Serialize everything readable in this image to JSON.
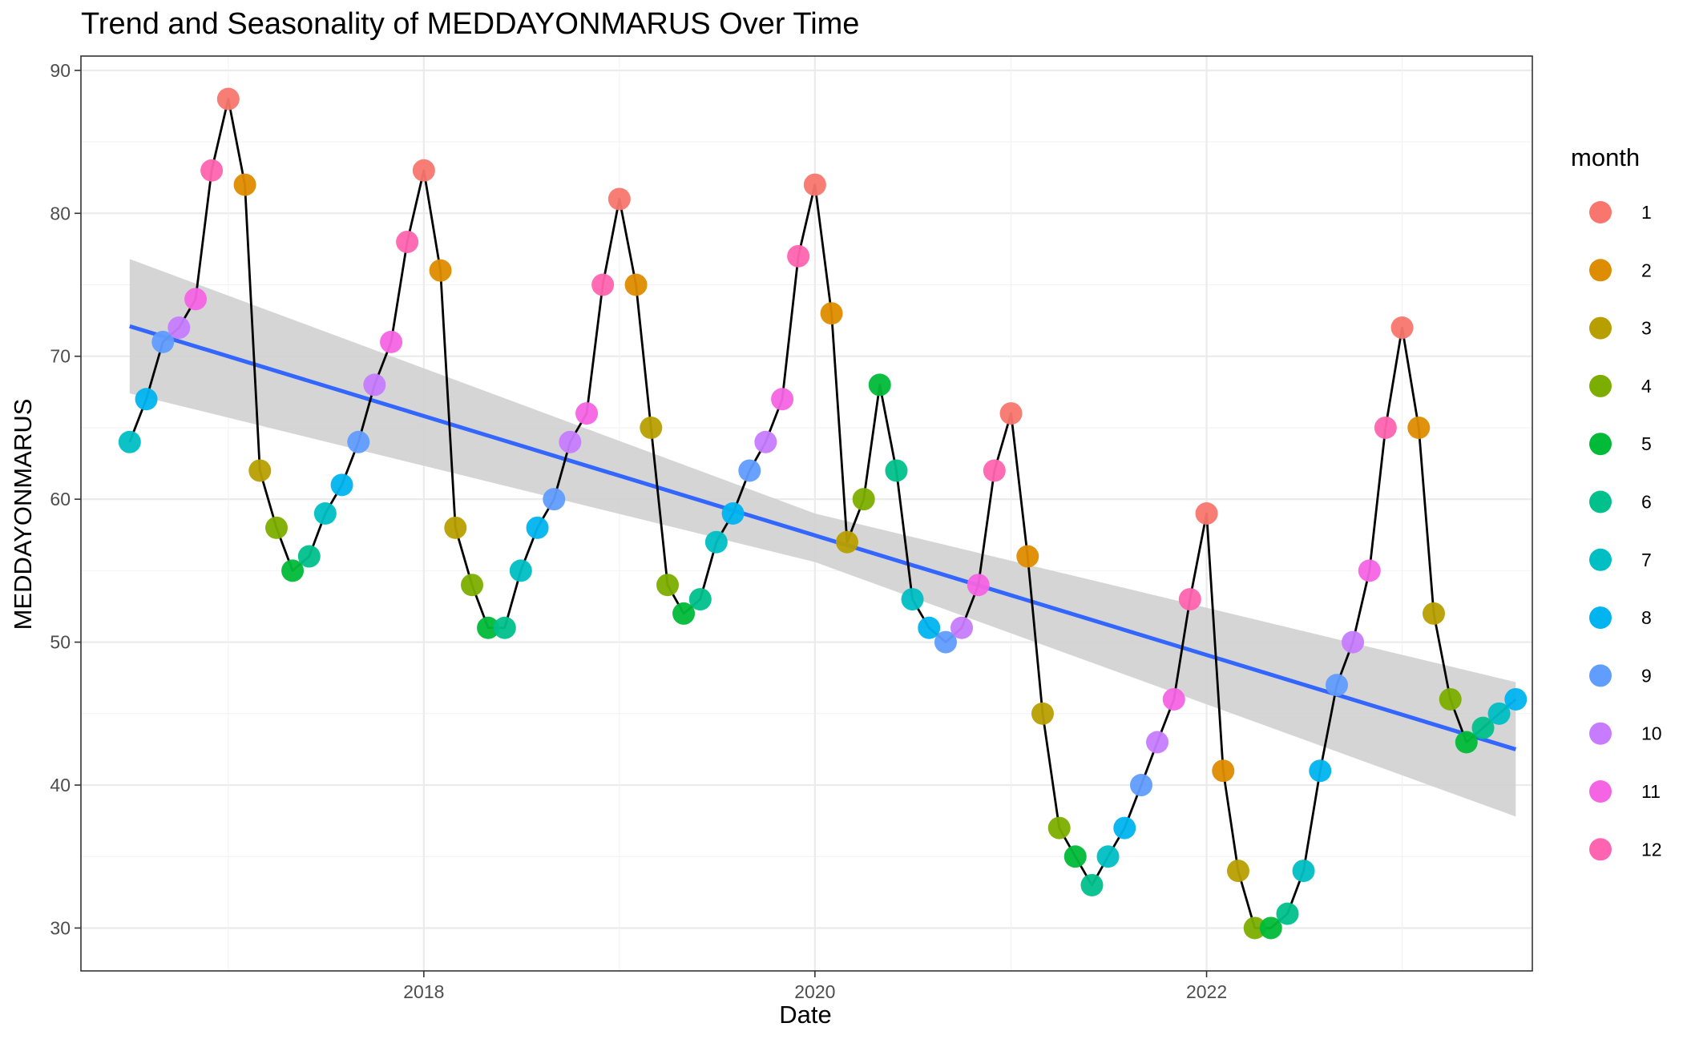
{
  "chart_data": {
    "type": "scatter",
    "title": "Trend and Seasonality of MEDDAYONMARUS Over Time",
    "xlabel": "Date",
    "ylabel": "MEDDAYONMARUS",
    "x_axis_type": "date",
    "xlim": [
      "2016-04-01",
      "2023-09-01"
    ],
    "ylim": [
      27,
      91
    ],
    "x_ticks": [
      "2018-01-01",
      "2020-01-01",
      "2022-01-01"
    ],
    "x_tick_labels": [
      "2018",
      "2020",
      "2022"
    ],
    "y_ticks": [
      30,
      40,
      50,
      60,
      70,
      80,
      90
    ],
    "y_tick_labels": [
      "30",
      "40",
      "50",
      "60",
      "70",
      "80",
      "90"
    ],
    "grid": true,
    "legend": {
      "title": "month",
      "position": "right",
      "entries": [
        {
          "label": "1",
          "color": "#F8766D"
        },
        {
          "label": "2",
          "color": "#DE8C00"
        },
        {
          "label": "3",
          "color": "#B79F00"
        },
        {
          "label": "4",
          "color": "#7CAE00"
        },
        {
          "label": "5",
          "color": "#00BA38"
        },
        {
          "label": "6",
          "color": "#00C08B"
        },
        {
          "label": "7",
          "color": "#00BFC4"
        },
        {
          "label": "8",
          "color": "#00B4F0"
        },
        {
          "label": "9",
          "color": "#619CFF"
        },
        {
          "label": "10",
          "color": "#C77CFF"
        },
        {
          "label": "11",
          "color": "#F564E3"
        },
        {
          "label": "12",
          "color": "#FF64B0"
        }
      ]
    },
    "series": [
      {
        "kind": "points_and_line",
        "line_color": "#000000",
        "points": [
          {
            "x": "2016-07-01",
            "y": 64
          },
          {
            "x": "2016-08-01",
            "y": 67
          },
          {
            "x": "2016-09-01",
            "y": 71
          },
          {
            "x": "2016-10-01",
            "y": 72
          },
          {
            "x": "2016-11-01",
            "y": 74
          },
          {
            "x": "2016-12-01",
            "y": 83
          },
          {
            "x": "2017-01-01",
            "y": 88
          },
          {
            "x": "2017-02-01",
            "y": 82
          },
          {
            "x": "2017-03-01",
            "y": 62
          },
          {
            "x": "2017-04-01",
            "y": 58
          },
          {
            "x": "2017-05-01",
            "y": 55
          },
          {
            "x": "2017-06-01",
            "y": 56
          },
          {
            "x": "2017-07-01",
            "y": 59
          },
          {
            "x": "2017-08-01",
            "y": 61
          },
          {
            "x": "2017-09-01",
            "y": 64
          },
          {
            "x": "2017-10-01",
            "y": 68
          },
          {
            "x": "2017-11-01",
            "y": 71
          },
          {
            "x": "2017-12-01",
            "y": 78
          },
          {
            "x": "2018-01-01",
            "y": 83
          },
          {
            "x": "2018-02-01",
            "y": 76
          },
          {
            "x": "2018-03-01",
            "y": 58
          },
          {
            "x": "2018-04-01",
            "y": 54
          },
          {
            "x": "2018-05-01",
            "y": 51
          },
          {
            "x": "2018-06-01",
            "y": 51
          },
          {
            "x": "2018-07-01",
            "y": 55
          },
          {
            "x": "2018-08-01",
            "y": 58
          },
          {
            "x": "2018-09-01",
            "y": 60
          },
          {
            "x": "2018-10-01",
            "y": 64
          },
          {
            "x": "2018-11-01",
            "y": 66
          },
          {
            "x": "2018-12-01",
            "y": 75
          },
          {
            "x": "2019-01-01",
            "y": 81
          },
          {
            "x": "2019-02-01",
            "y": 75
          },
          {
            "x": "2019-03-01",
            "y": 65
          },
          {
            "x": "2019-04-01",
            "y": 54
          },
          {
            "x": "2019-05-01",
            "y": 52
          },
          {
            "x": "2019-06-01",
            "y": 53
          },
          {
            "x": "2019-07-01",
            "y": 57
          },
          {
            "x": "2019-08-01",
            "y": 59
          },
          {
            "x": "2019-09-01",
            "y": 62
          },
          {
            "x": "2019-10-01",
            "y": 64
          },
          {
            "x": "2019-11-01",
            "y": 67
          },
          {
            "x": "2019-12-01",
            "y": 77
          },
          {
            "x": "2020-01-01",
            "y": 82
          },
          {
            "x": "2020-02-01",
            "y": 73
          },
          {
            "x": "2020-03-01",
            "y": 57
          },
          {
            "x": "2020-04-01",
            "y": 60
          },
          {
            "x": "2020-05-01",
            "y": 68
          },
          {
            "x": "2020-06-01",
            "y": 62
          },
          {
            "x": "2020-07-01",
            "y": 53
          },
          {
            "x": "2020-08-01",
            "y": 51
          },
          {
            "x": "2020-09-01",
            "y": 50
          },
          {
            "x": "2020-10-01",
            "y": 51
          },
          {
            "x": "2020-11-01",
            "y": 54
          },
          {
            "x": "2020-12-01",
            "y": 62
          },
          {
            "x": "2021-01-01",
            "y": 66
          },
          {
            "x": "2021-02-01",
            "y": 56
          },
          {
            "x": "2021-03-01",
            "y": 45
          },
          {
            "x": "2021-04-01",
            "y": 37
          },
          {
            "x": "2021-05-01",
            "y": 35
          },
          {
            "x": "2021-06-01",
            "y": 33
          },
          {
            "x": "2021-07-01",
            "y": 35
          },
          {
            "x": "2021-08-01",
            "y": 37
          },
          {
            "x": "2021-09-01",
            "y": 40
          },
          {
            "x": "2021-10-01",
            "y": 43
          },
          {
            "x": "2021-11-01",
            "y": 46
          },
          {
            "x": "2021-12-01",
            "y": 53
          },
          {
            "x": "2022-01-01",
            "y": 59
          },
          {
            "x": "2022-02-01",
            "y": 41
          },
          {
            "x": "2022-03-01",
            "y": 34
          },
          {
            "x": "2022-04-01",
            "y": 30
          },
          {
            "x": "2022-05-01",
            "y": 30
          },
          {
            "x": "2022-06-01",
            "y": 31
          },
          {
            "x": "2022-07-01",
            "y": 34
          },
          {
            "x": "2022-08-01",
            "y": 41
          },
          {
            "x": "2022-09-01",
            "y": 47
          },
          {
            "x": "2022-10-01",
            "y": 50
          },
          {
            "x": "2022-11-01",
            "y": 55
          },
          {
            "x": "2022-12-01",
            "y": 65
          },
          {
            "x": "2023-01-01",
            "y": 72
          },
          {
            "x": "2023-02-01",
            "y": 65
          },
          {
            "x": "2023-03-01",
            "y": 52
          },
          {
            "x": "2023-04-01",
            "y": 46
          },
          {
            "x": "2023-05-01",
            "y": 43
          },
          {
            "x": "2023-06-01",
            "y": 44
          },
          {
            "x": "2023-07-01",
            "y": 45
          },
          {
            "x": "2023-08-01",
            "y": 46
          }
        ]
      },
      {
        "kind": "trend_line",
        "line_color": "#3366FF",
        "start": {
          "x": "2016-07-01",
          "y": 72.1
        },
        "end": {
          "x": "2023-08-01",
          "y": 42.5
        }
      },
      {
        "kind": "confidence_band",
        "fill_color": "#d0d0d0",
        "start": {
          "x": "2016-07-01",
          "lower": 67.4,
          "upper": 76.8
        },
        "mid": {
          "x": "2020-01-01",
          "lower": 55.6,
          "upper": 59.0
        },
        "end": {
          "x": "2023-08-01",
          "lower": 37.8,
          "upper": 47.2
        }
      }
    ]
  }
}
